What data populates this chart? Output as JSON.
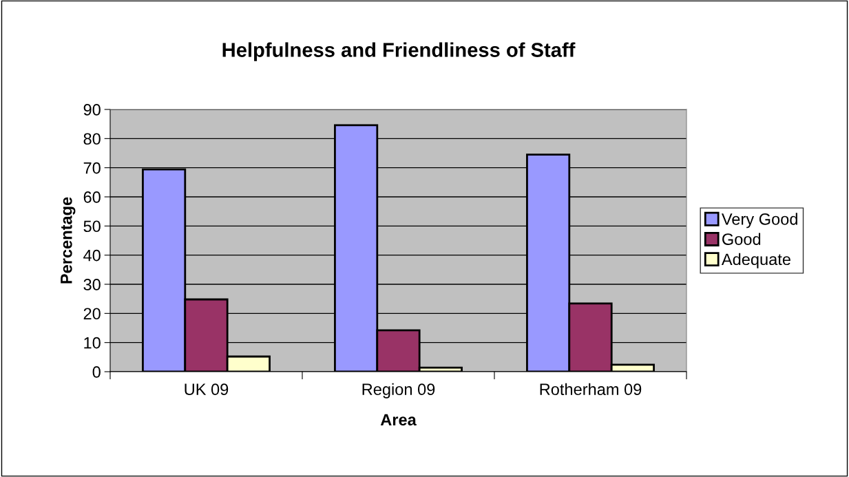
{
  "chart_data": {
    "type": "bar",
    "title": "Helpfulness and Friendliness of Staff",
    "xlabel": "Area",
    "ylabel": "Percentage",
    "categories": [
      "UK 09",
      "Region 09",
      "Rotherham 09"
    ],
    "series": [
      {
        "name": "Very Good",
        "color": "#9999ff",
        "values": [
          69.4,
          84.6,
          74.5
        ]
      },
      {
        "name": "Good",
        "color": "#993366",
        "values": [
          24.8,
          14.2,
          23.4
        ]
      },
      {
        "name": "Adequate",
        "color": "#ffffcc",
        "values": [
          5.2,
          1.4,
          2.4
        ]
      }
    ],
    "ylim": [
      0,
      90
    ],
    "yticks": [
      0,
      10,
      20,
      30,
      40,
      50,
      60,
      70,
      80,
      90
    ],
    "grid": "y",
    "legend": "right"
  }
}
